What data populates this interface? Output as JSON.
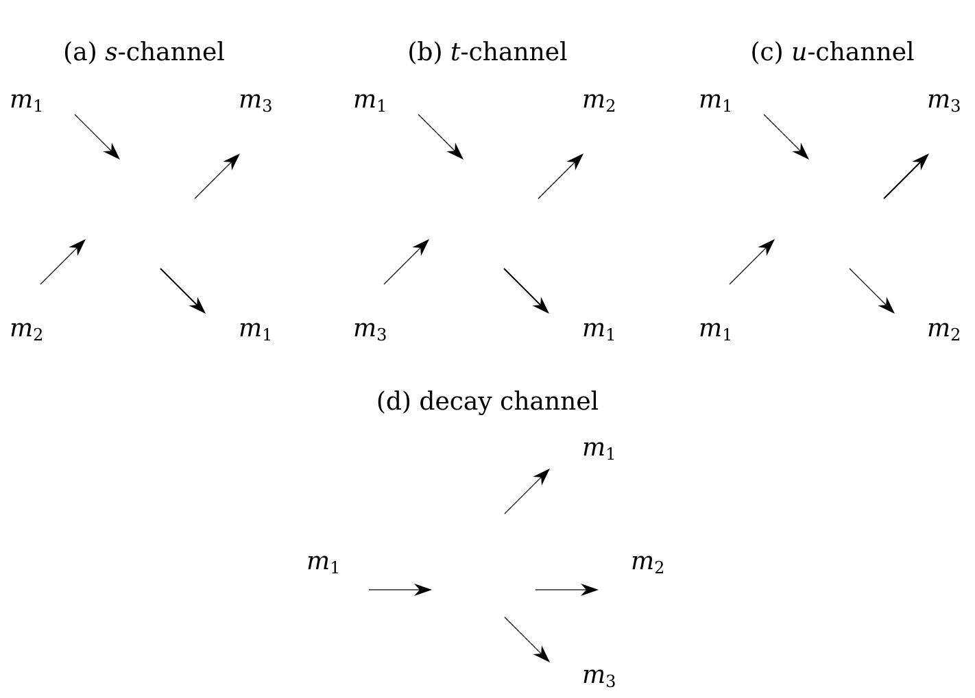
{
  "panels": [
    {
      "id": "a",
      "title_prefix": "(a) ",
      "title_var": "s",
      "title_suffix": "-channel",
      "labels": {
        "top_left": {
          "base": "m",
          "sub": "1"
        },
        "top_right": {
          "base": "m",
          "sub": "3"
        },
        "bottom_left": {
          "base": "m",
          "sub": "2"
        },
        "bottom_right": {
          "base": "m",
          "sub": "1"
        }
      }
    },
    {
      "id": "b",
      "title_prefix": "(b) ",
      "title_var": "t",
      "title_suffix": "-channel",
      "labels": {
        "top_left": {
          "base": "m",
          "sub": "1"
        },
        "top_right": {
          "base": "m",
          "sub": "2"
        },
        "bottom_left": {
          "base": "m",
          "sub": "3"
        },
        "bottom_right": {
          "base": "m",
          "sub": "1"
        }
      }
    },
    {
      "id": "c",
      "title_prefix": "(c) ",
      "title_var": "u",
      "title_suffix": "-channel",
      "labels": {
        "top_left": {
          "base": "m",
          "sub": "1"
        },
        "top_right": {
          "base": "m",
          "sub": "3"
        },
        "bottom_left": {
          "base": "m",
          "sub": "1"
        },
        "bottom_right": {
          "base": "m",
          "sub": "2"
        }
      }
    }
  ],
  "decay": {
    "title": "(d) decay channel",
    "labels": {
      "incoming": {
        "base": "m",
        "sub": "1"
      },
      "out_top": {
        "base": "m",
        "sub": "1"
      },
      "out_middle": {
        "base": "m",
        "sub": "2"
      },
      "out_bottom": {
        "base": "m",
        "sub": "3"
      }
    }
  }
}
